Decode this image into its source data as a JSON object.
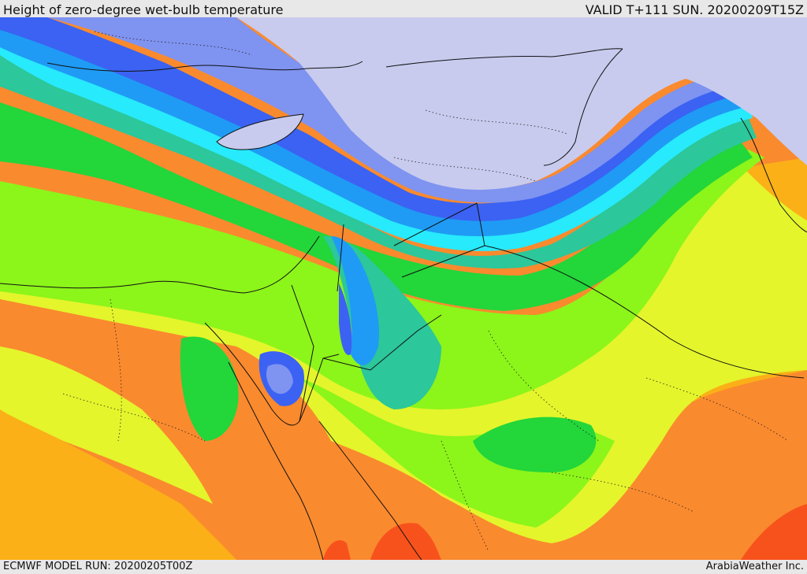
{
  "header": {
    "title": "Height of zero-degree wet-bulb temperature",
    "valid": "VALID T+111 SUN. 20200209T15Z"
  },
  "footer": {
    "model_run": "ECMWF MODEL RUN: 20200205T00Z",
    "credit": "ArabiaWeather Inc."
  },
  "palette": {
    "snow": "#c8cbee",
    "lavender": "#7f93f0",
    "blue": "#3b62f2",
    "azure": "#1f9bf5",
    "cyan": "#27eafc",
    "teal": "#2cc79a",
    "green": "#23d63a",
    "lime": "#8cf51a",
    "yellow": "#e4f52b",
    "orange_light": "#fbb017",
    "orange": "#fa8a2e",
    "red": "#f8521c",
    "border": "#111111"
  }
}
